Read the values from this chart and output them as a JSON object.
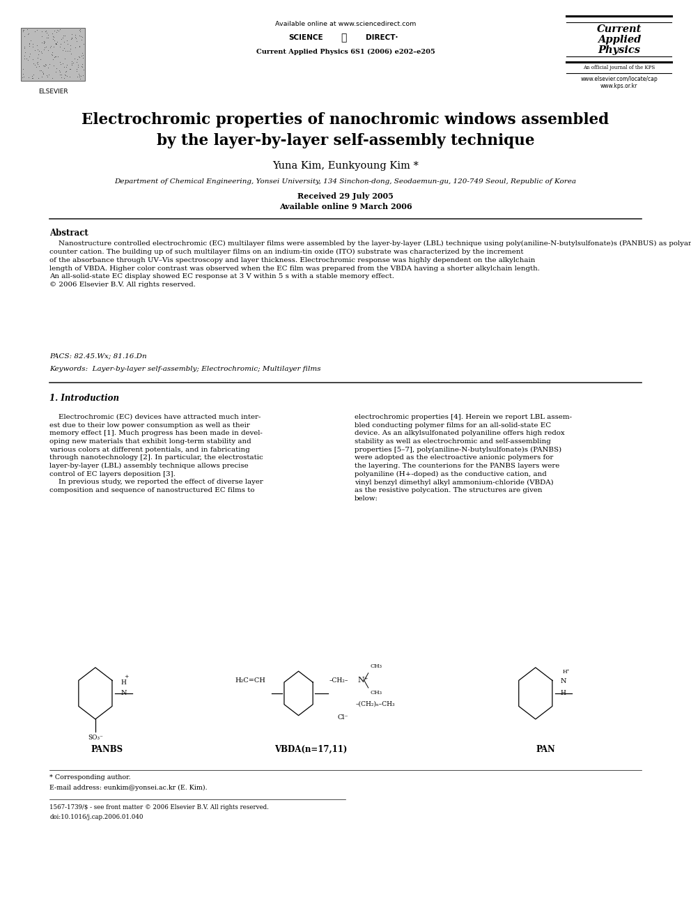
{
  "bg_color": "#ffffff",
  "page_width": 9.92,
  "page_height": 13.23,
  "available_online": "Available online at www.sciencedirect.com",
  "journal_ref": "Current Applied Physics 6S1 (2006) e202–e205",
  "journal_name_line1": "Current",
  "journal_name_line2": "Applied",
  "journal_name_line3": "Physics",
  "journal_subtitle": "An official journal of the KPS",
  "url1": "www.elsevier.com/locate/cap",
  "url2": "www.kps.or.kr",
  "elsevier_label": "ELSEVIER",
  "title_line1": "Electrochromic properties of nanochromic windows assembled",
  "title_line2": "by the layer-by-layer self-assembly technique",
  "authors": "Yuna Kim, Eunkyoung Kim *",
  "affiliation": "Department of Chemical Engineering, Yonsei University, 134 Sinchon-dong, Seodaemun-gu, 120-749 Seoul, Republic of Korea",
  "received": "Received 29 July 2005",
  "available_date": "Available online 9 March 2006",
  "abstract_label": "Abstract",
  "abstract_text": "    Nanostructure controlled electrochromic (EC) multilayer films were assembled by the layer-by-layer (LBL) technique using poly(aniline-N-butylsulfonate)s (PANBUS) as polyanion, and vinyl benzyl dimethyl alkyl ammonium-chloride (VBDA) and polyaniline as the\ncounter cation. The building up of such multilayer films on an indium-tin oxide (ITO) substrate was characterized by the increment\nof the absorbance through UV–Vis spectroscopy and layer thickness. Electrochromic response was highly dependent on the alkylchain\nlength of VBDA. Higher color contrast was observed when the EC film was prepared from the VBDA having a shorter alkylchain length.\nAn all-solid-state EC display showed EC response at 3 V within 5 s with a stable memory effect.\n© 2006 Elsevier B.V. All rights reserved.",
  "pacs_text": "PACS: 82.45.Wx; 81.16.Dn",
  "keywords_text": "Keywords:  Layer-by-layer self-assembly; Electrochromic; Multilayer films",
  "section1_title": "1. Introduction",
  "col1_text": "    Electrochromic (EC) devices have attracted much inter-\nest due to their low power consumption as well as their\nmemory effect [1]. Much progress has been made in devel-\noping new materials that exhibit long-term stability and\nvarious colors at different potentials, and in fabricating\nthrough nanotechnology [2]. In particular, the electrostatic\nlayer-by-layer (LBL) assembly technique allows precise\ncontrol of EC layers deposition [3].\n    In previous study, we reported the effect of diverse layer\ncomposition and sequence of nanostructured EC films to",
  "col2_text": "electrochromic properties [4]. Herein we report LBL assem-\nbled conducting polymer films for an all-solid-state EC\ndevice. As an alkylsulfonated polyaniline offers high redox\nstability as well as electrochromic and self-assembling\nproperties [5–7], poly(aniline-N-butylsulfonate)s (PANBS)\nwere adopted as the electroactive anionic polymers for\nthe layering. The counterions for the PANBS layers were\npolyaniline (H+-doped) as the conductive cation, and\nvinyl benzyl dimethyl alkyl ammonium-chloride (VBDA)\nas the resistive polycation. The structures are given\nbelow:",
  "chem_label1": "PANBS",
  "chem_label2": "VBDA(n=17,11)",
  "chem_label3": "PAN",
  "footnote1": "* Corresponding author.",
  "footnote2": "E-mail address: eunkim@yonsei.ac.kr (E. Kim).",
  "footnote3": "1567-1739/$ - see front matter © 2006 Elsevier B.V. All rights reserved.",
  "footnote4": "doi:10.1016/j.cap.2006.01.040"
}
